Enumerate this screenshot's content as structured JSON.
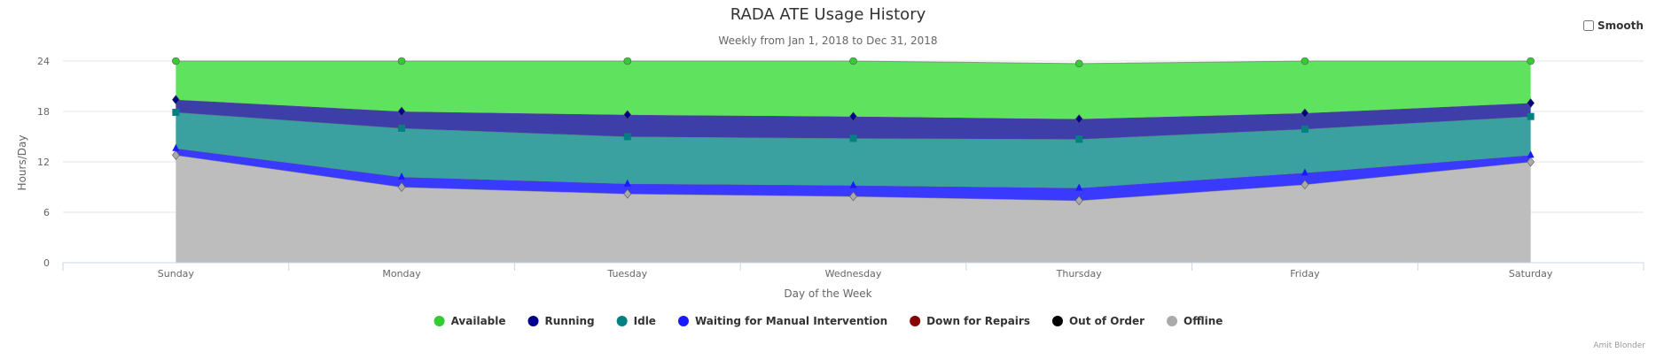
{
  "smooth_label": "Smooth",
  "credit": "Amit Blonder",
  "chart_data": {
    "type": "area",
    "stacked": true,
    "title": "RADA ATE Usage History",
    "subtitle": "Weekly from Jan 1, 2018 to Dec 31, 2018",
    "xlabel": "Day of the Week",
    "ylabel": "Hours/Day",
    "ylim": [
      0,
      24
    ],
    "yticks": [
      0,
      6,
      12,
      18,
      24
    ],
    "grid": true,
    "legend_position": "bottom",
    "categories": [
      "Sunday",
      "Monday",
      "Tuesday",
      "Wednesday",
      "Thursday",
      "Friday",
      "Saturday"
    ],
    "series": [
      {
        "name": "Offline",
        "color": "#aaaaaa",
        "fill": "#bdbdbd",
        "marker": "diamond",
        "values": [
          12.8,
          9.0,
          8.2,
          7.9,
          7.4,
          9.3,
          12.0
        ]
      },
      {
        "name": "Out of Order",
        "color": "#000000",
        "fill": "#000000",
        "marker": "circle",
        "values": [
          0,
          0,
          0,
          0,
          0,
          0,
          0
        ]
      },
      {
        "name": "Down for Repairs",
        "color": "#8b0000",
        "fill": "#8b0000",
        "marker": "circle",
        "values": [
          0,
          0,
          0,
          0,
          0,
          0,
          0
        ]
      },
      {
        "name": "Waiting for Manual Intervention",
        "color": "#1a1aff",
        "fill": "#3a3aff",
        "marker": "triangle",
        "values": [
          0.8,
          1.2,
          1.2,
          1.3,
          1.5,
          1.4,
          0.8
        ]
      },
      {
        "name": "Idle",
        "color": "#008080",
        "fill": "#3aa0a0",
        "marker": "square",
        "values": [
          4.3,
          5.8,
          5.6,
          5.6,
          5.8,
          5.2,
          4.6
        ]
      },
      {
        "name": "Running",
        "color": "#00008b",
        "fill": "#3e3ea8",
        "marker": "diamond",
        "values": [
          1.5,
          2.0,
          2.6,
          2.6,
          2.4,
          1.9,
          1.6
        ]
      },
      {
        "name": "Available",
        "color": "#33cc33",
        "fill": "#5fe35f",
        "marker": "circle",
        "values": [
          4.6,
          6.0,
          6.4,
          6.6,
          6.6,
          6.2,
          5.0
        ]
      }
    ],
    "legend_order": [
      "Available",
      "Running",
      "Idle",
      "Waiting for Manual Intervention",
      "Down for Repairs",
      "Out of Order",
      "Offline"
    ]
  }
}
